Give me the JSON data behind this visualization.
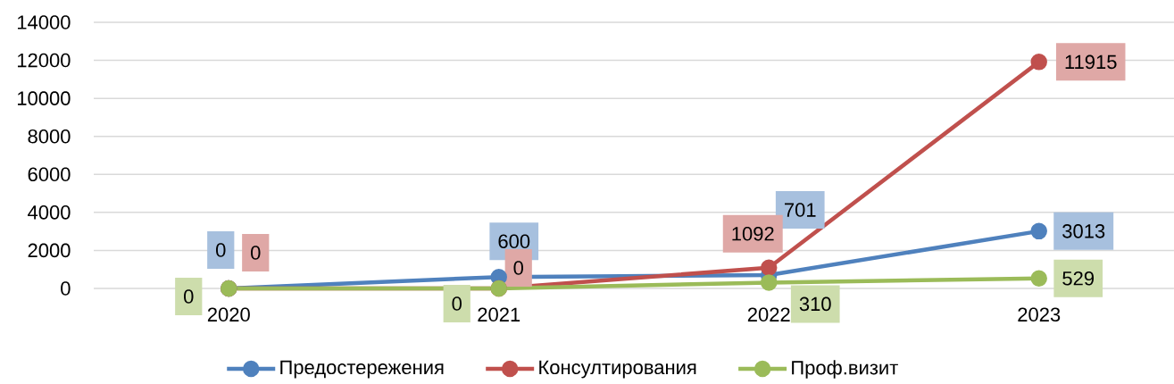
{
  "chart_data": {
    "type": "line",
    "categories": [
      "2020",
      "2021",
      "2022",
      "2023"
    ],
    "series": [
      {
        "name": "Предостережения",
        "color": "#4f81bd",
        "values": [
          0,
          600,
          701,
          3013
        ]
      },
      {
        "name": "Консултирования",
        "color": "#c0504d",
        "values": [
          0,
          0,
          1092,
          11915
        ]
      },
      {
        "name": "Проф.визит",
        "color": "#9bbb59",
        "values": [
          0,
          0,
          310,
          529
        ]
      }
    ],
    "ylim": [
      0,
      14000
    ],
    "yticks": [
      0,
      2000,
      4000,
      6000,
      8000,
      10000,
      12000,
      14000
    ],
    "grid": "y",
    "legend": "bottom",
    "marker": "circle",
    "line_style": "solid",
    "data_labels": true
  }
}
